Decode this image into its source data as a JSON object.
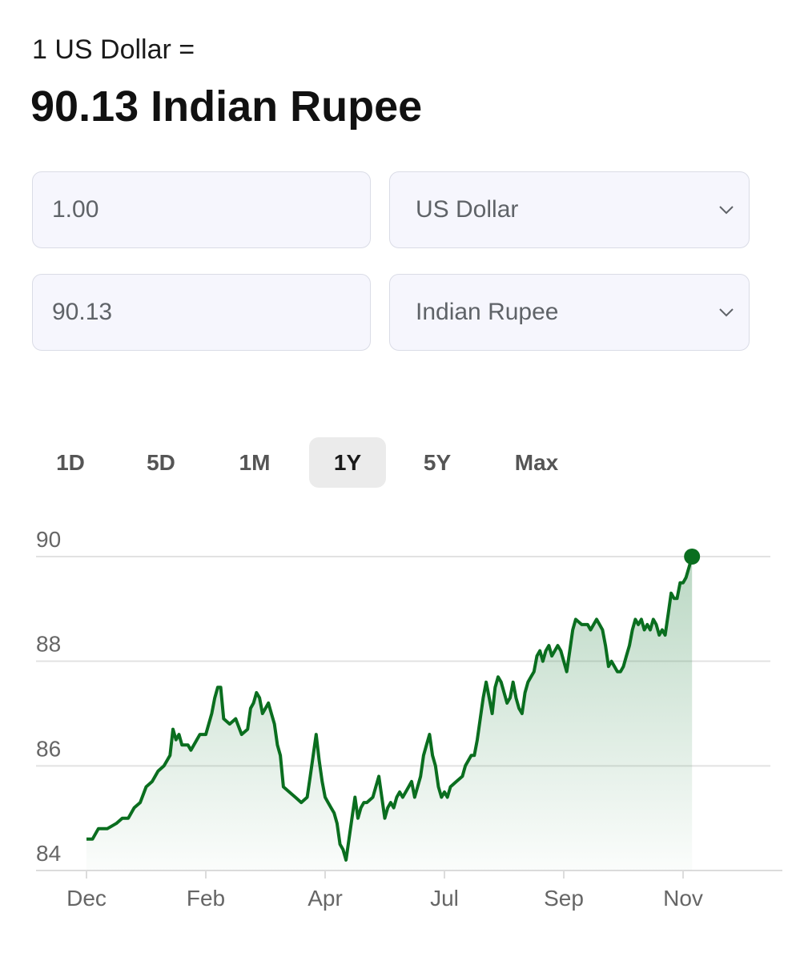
{
  "header": {
    "subtitle": "1 US Dollar =",
    "result": "90.13 Indian Rupee"
  },
  "converter": {
    "from_amount": "1.00",
    "from_currency": "US Dollar",
    "to_amount": "90.13",
    "to_currency": "Indian Rupee"
  },
  "icons": {
    "dropdown": "chevron-down-icon"
  },
  "range_tabs": [
    {
      "label": "1D",
      "active": false
    },
    {
      "label": "5D",
      "active": false
    },
    {
      "label": "1M",
      "active": false
    },
    {
      "label": "1Y",
      "active": true
    },
    {
      "label": "5Y",
      "active": false
    },
    {
      "label": "Max",
      "active": false
    }
  ],
  "colors": {
    "line": "#0a6e1f",
    "fill_top": "#3b8f55",
    "grid": "#e2e2e2",
    "tab_active_bg": "#ebebeb"
  },
  "chart_data": {
    "type": "area",
    "xlabel": "",
    "ylabel": "",
    "ylim": [
      83.7,
      90.2
    ],
    "y_ticks": [
      84,
      86,
      88,
      90
    ],
    "x_ticks": [
      {
        "label": "Dec",
        "t": 0
      },
      {
        "label": "Feb",
        "t": 2
      },
      {
        "label": "Apr",
        "t": 4
      },
      {
        "label": "Jul",
        "t": 6
      },
      {
        "label": "Sep",
        "t": 8
      },
      {
        "label": "Nov",
        "t": 10
      }
    ],
    "t_max": 11.6,
    "grid": true,
    "series": [
      {
        "points": [
          [
            0.0,
            84.6
          ],
          [
            0.1,
            84.6
          ],
          [
            0.2,
            84.8
          ],
          [
            0.35,
            84.8
          ],
          [
            0.5,
            84.9
          ],
          [
            0.6,
            85.0
          ],
          [
            0.7,
            85.0
          ],
          [
            0.8,
            85.2
          ],
          [
            0.9,
            85.3
          ],
          [
            1.0,
            85.6
          ],
          [
            1.1,
            85.7
          ],
          [
            1.2,
            85.9
          ],
          [
            1.3,
            86.0
          ],
          [
            1.4,
            86.2
          ],
          [
            1.45,
            86.7
          ],
          [
            1.5,
            86.5
          ],
          [
            1.55,
            86.6
          ],
          [
            1.6,
            86.4
          ],
          [
            1.7,
            86.4
          ],
          [
            1.75,
            86.3
          ],
          [
            1.85,
            86.5
          ],
          [
            1.9,
            86.6
          ],
          [
            2.0,
            86.6
          ],
          [
            2.1,
            87.0
          ],
          [
            2.15,
            87.3
          ],
          [
            2.2,
            87.5
          ],
          [
            2.25,
            87.5
          ],
          [
            2.3,
            86.9
          ],
          [
            2.4,
            86.8
          ],
          [
            2.5,
            86.9
          ],
          [
            2.6,
            86.6
          ],
          [
            2.7,
            86.7
          ],
          [
            2.75,
            87.1
          ],
          [
            2.8,
            87.2
          ],
          [
            2.85,
            87.4
          ],
          [
            2.9,
            87.3
          ],
          [
            2.95,
            87.0
          ],
          [
            3.0,
            87.1
          ],
          [
            3.05,
            87.2
          ],
          [
            3.1,
            87.0
          ],
          [
            3.15,
            86.8
          ],
          [
            3.2,
            86.4
          ],
          [
            3.25,
            86.2
          ],
          [
            3.3,
            85.6
          ],
          [
            3.4,
            85.5
          ],
          [
            3.5,
            85.4
          ],
          [
            3.6,
            85.3
          ],
          [
            3.7,
            85.4
          ],
          [
            3.75,
            85.8
          ],
          [
            3.8,
            86.2
          ],
          [
            3.85,
            86.6
          ],
          [
            3.9,
            86.1
          ],
          [
            3.95,
            85.7
          ],
          [
            4.0,
            85.4
          ],
          [
            4.05,
            85.3
          ],
          [
            4.1,
            85.2
          ],
          [
            4.15,
            85.1
          ],
          [
            4.2,
            84.9
          ],
          [
            4.25,
            84.5
          ],
          [
            4.3,
            84.4
          ],
          [
            4.35,
            84.2
          ],
          [
            4.4,
            84.6
          ],
          [
            4.45,
            85.0
          ],
          [
            4.5,
            85.4
          ],
          [
            4.55,
            85.0
          ],
          [
            4.6,
            85.2
          ],
          [
            4.65,
            85.3
          ],
          [
            4.7,
            85.3
          ],
          [
            4.8,
            85.4
          ],
          [
            4.85,
            85.6
          ],
          [
            4.9,
            85.8
          ],
          [
            4.95,
            85.4
          ],
          [
            5.0,
            85.0
          ],
          [
            5.05,
            85.2
          ],
          [
            5.1,
            85.3
          ],
          [
            5.15,
            85.2
          ],
          [
            5.2,
            85.4
          ],
          [
            5.25,
            85.5
          ],
          [
            5.3,
            85.4
          ],
          [
            5.4,
            85.6
          ],
          [
            5.45,
            85.7
          ],
          [
            5.5,
            85.4
          ],
          [
            5.55,
            85.6
          ],
          [
            5.6,
            85.8
          ],
          [
            5.65,
            86.2
          ],
          [
            5.7,
            86.4
          ],
          [
            5.75,
            86.6
          ],
          [
            5.8,
            86.2
          ],
          [
            5.85,
            86.0
          ],
          [
            5.9,
            85.6
          ],
          [
            5.95,
            85.4
          ],
          [
            6.0,
            85.5
          ],
          [
            6.05,
            85.4
          ],
          [
            6.1,
            85.6
          ],
          [
            6.2,
            85.7
          ],
          [
            6.3,
            85.8
          ],
          [
            6.35,
            86.0
          ],
          [
            6.4,
            86.1
          ],
          [
            6.45,
            86.2
          ],
          [
            6.5,
            86.2
          ],
          [
            6.55,
            86.5
          ],
          [
            6.6,
            86.9
          ],
          [
            6.65,
            87.3
          ],
          [
            6.7,
            87.6
          ],
          [
            6.75,
            87.3
          ],
          [
            6.8,
            87.0
          ],
          [
            6.85,
            87.5
          ],
          [
            6.9,
            87.7
          ],
          [
            6.95,
            87.6
          ],
          [
            7.0,
            87.4
          ],
          [
            7.05,
            87.2
          ],
          [
            7.1,
            87.3
          ],
          [
            7.15,
            87.6
          ],
          [
            7.2,
            87.3
          ],
          [
            7.25,
            87.1
          ],
          [
            7.3,
            87.0
          ],
          [
            7.35,
            87.4
          ],
          [
            7.4,
            87.6
          ],
          [
            7.45,
            87.7
          ],
          [
            7.5,
            87.8
          ],
          [
            7.55,
            88.1
          ],
          [
            7.6,
            88.2
          ],
          [
            7.65,
            88.0
          ],
          [
            7.7,
            88.2
          ],
          [
            7.75,
            88.3
          ],
          [
            7.8,
            88.1
          ],
          [
            7.85,
            88.2
          ],
          [
            7.9,
            88.3
          ],
          [
            7.95,
            88.2
          ],
          [
            8.0,
            88.0
          ],
          [
            8.05,
            87.8
          ],
          [
            8.1,
            88.2
          ],
          [
            8.15,
            88.6
          ],
          [
            8.2,
            88.8
          ],
          [
            8.3,
            88.7
          ],
          [
            8.4,
            88.7
          ],
          [
            8.45,
            88.6
          ],
          [
            8.55,
            88.8
          ],
          [
            8.6,
            88.7
          ],
          [
            8.65,
            88.6
          ],
          [
            8.7,
            88.3
          ],
          [
            8.75,
            87.9
          ],
          [
            8.8,
            88.0
          ],
          [
            8.85,
            87.9
          ],
          [
            8.9,
            87.8
          ],
          [
            8.95,
            87.8
          ],
          [
            9.0,
            87.9
          ],
          [
            9.05,
            88.1
          ],
          [
            9.1,
            88.3
          ],
          [
            9.15,
            88.6
          ],
          [
            9.2,
            88.8
          ],
          [
            9.25,
            88.7
          ],
          [
            9.3,
            88.8
          ],
          [
            9.35,
            88.6
          ],
          [
            9.4,
            88.7
          ],
          [
            9.45,
            88.6
          ],
          [
            9.5,
            88.8
          ],
          [
            9.55,
            88.7
          ],
          [
            9.6,
            88.5
          ],
          [
            9.65,
            88.6
          ],
          [
            9.7,
            88.5
          ],
          [
            9.75,
            88.9
          ],
          [
            9.8,
            89.3
          ],
          [
            9.85,
            89.2
          ],
          [
            9.9,
            89.2
          ],
          [
            9.95,
            89.5
          ],
          [
            10.0,
            89.5
          ],
          [
            10.05,
            89.6
          ],
          [
            10.1,
            89.8
          ],
          [
            10.15,
            90.0
          ]
        ]
      }
    ]
  }
}
